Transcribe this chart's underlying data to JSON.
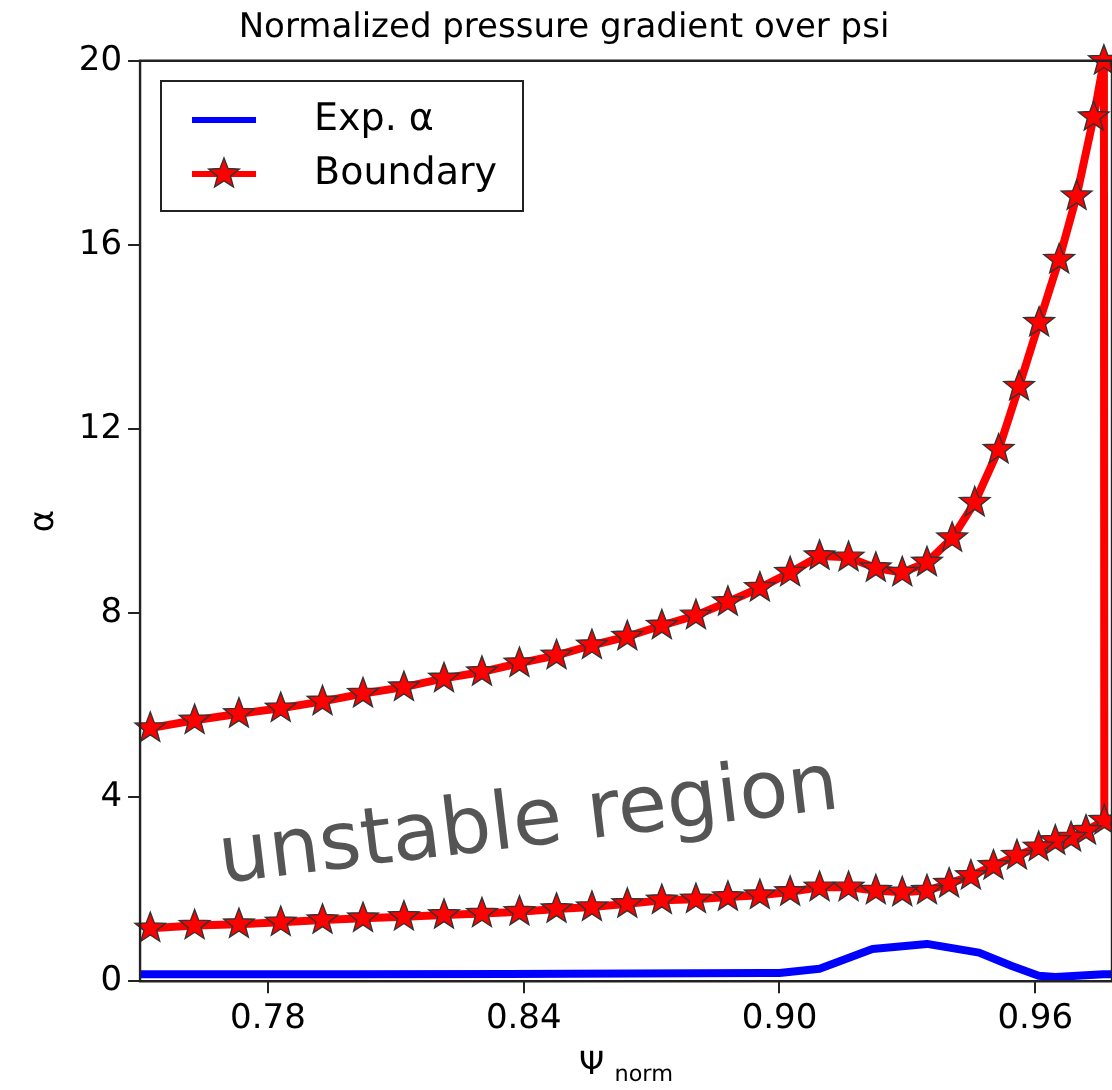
{
  "chart_data": {
    "type": "line",
    "title": "Normalized pressure gradient over psi",
    "xlabel": "Ψ $_{norm}$",
    "ylabel": "α",
    "xlim": [
      0.75,
      0.978
    ],
    "xticks": [
      0.78,
      0.84,
      {
        "value": 0.9,
        "label": "0.90"
      },
      0.96
    ],
    "ylim": [
      0,
      20
    ],
    "yticks": [
      0,
      4,
      8,
      12,
      16,
      20
    ],
    "grid": false,
    "legend": "top left",
    "annotations": [
      "unstable region"
    ],
    "series": [
      {
        "name": "Exp. α",
        "color": "#0000ff",
        "marker": "none",
        "x": [
          0.75,
          0.8,
          0.85,
          0.9,
          0.9094,
          0.9218,
          0.9346,
          0.9468,
          0.9545,
          0.9608,
          0.9647,
          0.976,
          0.978
        ],
        "values": [
          0.15,
          0.15,
          0.16,
          0.18,
          0.27,
          0.7,
          0.81,
          0.62,
          0.33,
          0.12,
          0.09,
          0.15,
          0.15
        ]
      },
      {
        "name": "Boundary",
        "color": "#ff0000",
        "marker": "star",
        "x": [
          0.7524,
          0.7628,
          0.7732,
          0.783,
          0.7928,
          0.8023,
          0.8119,
          0.8213,
          0.8302,
          0.839,
          0.8477,
          0.856,
          0.8643,
          0.8724,
          0.8804,
          0.8879,
          0.8954,
          0.9025,
          0.9094,
          0.9162,
          0.9226,
          0.9288,
          0.9346,
          0.9405,
          0.9458,
          0.9514,
          0.9562,
          0.9609,
          0.9656,
          0.9697,
          0.9737,
          0.9761,
          0.9762,
          0.9719,
          0.9684,
          0.9647,
          0.9608,
          0.9557,
          0.9502,
          0.9449,
          0.9398,
          0.9346,
          0.9288,
          0.9226,
          0.9162,
          0.9094,
          0.9025,
          0.8954,
          0.8879,
          0.8804,
          0.8724,
          0.8643,
          0.856,
          0.8477,
          0.839,
          0.8302,
          0.8213,
          0.8119,
          0.8023,
          0.7928,
          0.783,
          0.7732,
          0.7628,
          0.7524
        ],
        "values": [
          5.5,
          5.67,
          5.81,
          5.93,
          6.08,
          6.25,
          6.39,
          6.58,
          6.72,
          6.91,
          7.08,
          7.3,
          7.49,
          7.73,
          7.95,
          8.24,
          8.55,
          8.88,
          9.24,
          9.21,
          8.98,
          8.88,
          9.1,
          9.63,
          10.4,
          11.55,
          12.92,
          14.31,
          15.68,
          17.06,
          18.78,
          20.0,
          3.49,
          3.27,
          3.12,
          3.05,
          2.91,
          2.73,
          2.51,
          2.29,
          2.12,
          1.97,
          1.93,
          1.97,
          2.04,
          2.04,
          1.94,
          1.87,
          1.83,
          1.78,
          1.76,
          1.68,
          1.61,
          1.57,
          1.51,
          1.47,
          1.44,
          1.4,
          1.37,
          1.33,
          1.28,
          1.24,
          1.21,
          1.15
        ]
      }
    ]
  }
}
